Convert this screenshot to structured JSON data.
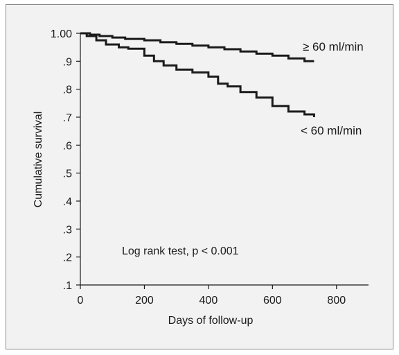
{
  "chart_data": {
    "type": "line",
    "subtype": "step",
    "xlabel": "Days of follow-up",
    "ylabel": "Cumulative survival",
    "xlim": [
      0,
      900
    ],
    "ylim": [
      0.1,
      1.0
    ],
    "x_ticks": [
      0,
      200,
      400,
      600,
      800
    ],
    "x_tick_labels": [
      "0",
      "200",
      "400",
      "600",
      "800"
    ],
    "y_ticks": [
      1.0,
      0.9,
      0.8,
      0.7,
      0.6,
      0.5,
      0.4,
      0.3,
      0.2,
      0.1
    ],
    "y_tick_labels": [
      "1.00",
      ".9",
      ".8",
      ".7",
      ".6",
      ".5",
      ".4",
      ".3",
      ".2",
      ".1"
    ],
    "grid": false,
    "annotation": "Log rank test, p < 0.001",
    "series": [
      {
        "name": "≥ 60 ml/min",
        "x": [
          0,
          30,
          60,
          100,
          140,
          200,
          250,
          300,
          350,
          400,
          450,
          500,
          550,
          600,
          650,
          700,
          730
        ],
        "y": [
          1.0,
          0.995,
          0.99,
          0.985,
          0.98,
          0.975,
          0.968,
          0.962,
          0.956,
          0.95,
          0.943,
          0.935,
          0.927,
          0.92,
          0.91,
          0.9,
          0.9
        ]
      },
      {
        "name": "< 60 ml/min",
        "x": [
          0,
          20,
          50,
          80,
          120,
          150,
          200,
          230,
          260,
          300,
          350,
          400,
          430,
          460,
          500,
          550,
          600,
          650,
          700,
          730
        ],
        "y": [
          1.0,
          0.99,
          0.975,
          0.96,
          0.95,
          0.945,
          0.92,
          0.9,
          0.885,
          0.87,
          0.86,
          0.845,
          0.82,
          0.81,
          0.79,
          0.77,
          0.74,
          0.72,
          0.71,
          0.7
        ]
      }
    ]
  }
}
